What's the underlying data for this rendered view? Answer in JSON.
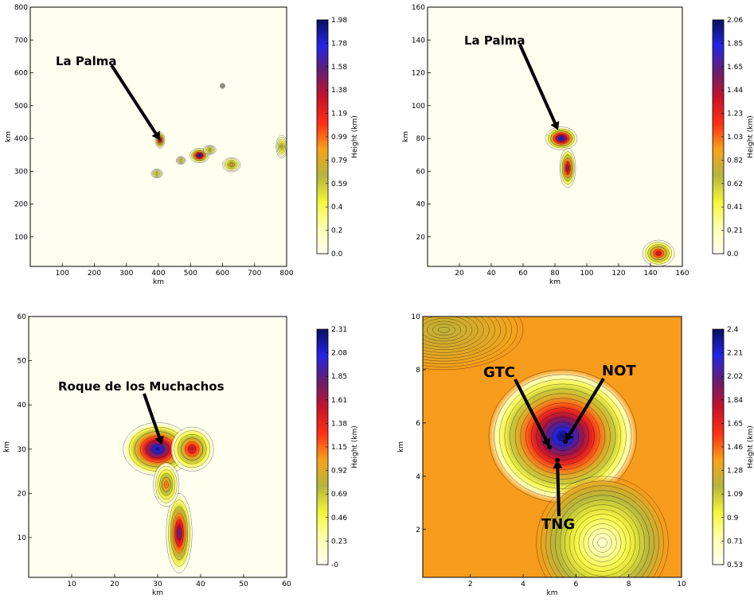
{
  "colors": {
    "cmap": [
      "#fffff0",
      "#ffffb0",
      "#f5f53a",
      "#b5b53d",
      "#f7a21c",
      "#ff3014",
      "#c9122a",
      "#681e6e",
      "#2424e6",
      "#0a0f5f"
    ],
    "background": "#fffff0"
  },
  "chart_data": [
    {
      "type": "contour",
      "xlabel": "km",
      "ylabel": "km",
      "xlim": [
        0,
        800
      ],
      "ylim": [
        10,
        800
      ],
      "xticks": [
        "100",
        "200",
        "300",
        "400",
        "500",
        "600",
        "700",
        "800"
      ],
      "yticks": [
        "100",
        "200",
        "300",
        "400",
        "500",
        "600",
        "700",
        "800"
      ],
      "colorbar": {
        "label": "Height (km)",
        "ticks": [
          "0.0",
          "0.2",
          "0.4",
          "0.59",
          "0.79",
          "0.99",
          "1.19",
          "1.38",
          "1.58",
          "1.78",
          "1.98"
        ]
      },
      "annotations": [
        {
          "text": "La Palma",
          "target": [
            405,
            395
          ]
        }
      ],
      "features": [
        {
          "x": 405,
          "y": 395,
          "rx": 15,
          "ry": 25,
          "peak": 1.6
        },
        {
          "x": 395,
          "y": 293,
          "rx": 18,
          "ry": 14,
          "peak": 0.6
        },
        {
          "x": 470,
          "y": 333,
          "rx": 15,
          "ry": 12,
          "peak": 0.5
        },
        {
          "x": 528,
          "y": 348,
          "rx": 30,
          "ry": 22,
          "peak": 1.9
        },
        {
          "x": 560,
          "y": 365,
          "rx": 20,
          "ry": 14,
          "peak": 0.7
        },
        {
          "x": 628,
          "y": 320,
          "rx": 28,
          "ry": 22,
          "peak": 0.9
        },
        {
          "x": 785,
          "y": 375,
          "rx": 18,
          "ry": 35,
          "peak": 0.7
        },
        {
          "x": 600,
          "y": 560,
          "rx": 8,
          "ry": 8,
          "peak": 0.1
        }
      ]
    },
    {
      "type": "contour",
      "xlabel": "km",
      "ylabel": "km",
      "xlim": [
        0,
        160
      ],
      "ylim": [
        2,
        160
      ],
      "xticks": [
        "20",
        "40",
        "60",
        "80",
        "100",
        "120",
        "140",
        "160"
      ],
      "yticks": [
        "20",
        "40",
        "60",
        "80",
        "100",
        "120",
        "140",
        "160"
      ],
      "colorbar": {
        "label": "Height (km)",
        "ticks": [
          "0.0",
          "0.21",
          "0.41",
          "0.62",
          "0.82",
          "1.03",
          "1.23",
          "1.44",
          "1.65",
          "1.85",
          "2.06"
        ]
      },
      "annotations": [
        {
          "text": "La Palma",
          "target": [
            82,
            85
          ]
        }
      ],
      "features": [
        {
          "x": 84,
          "y": 80,
          "rx": 10,
          "ry": 7,
          "peak": 2.0
        },
        {
          "x": 88,
          "y": 62,
          "rx": 5,
          "ry": 12,
          "peak": 1.6
        },
        {
          "x": 145,
          "y": 10,
          "rx": 10,
          "ry": 8,
          "peak": 1.4
        }
      ]
    },
    {
      "type": "contour",
      "xlabel": "km",
      "ylabel": "km",
      "xlim": [
        0,
        60
      ],
      "ylim": [
        1,
        60
      ],
      "xticks": [
        "10",
        "20",
        "30",
        "40",
        "50",
        "60"
      ],
      "yticks": [
        "10",
        "20",
        "30",
        "40",
        "50",
        "60"
      ],
      "colorbar": {
        "label": "Height (km)",
        "ticks": [
          "-0",
          "0.23",
          "0.46",
          "0.69",
          "0.92",
          "1.15",
          "1.38",
          "1.61",
          "1.85",
          "2.08",
          "2.31"
        ]
      },
      "annotations": [
        {
          "text": "Roque de los Muchachos",
          "target": [
            31,
            31
          ]
        }
      ],
      "features": [
        {
          "x": 30,
          "y": 30,
          "rx": 8,
          "ry": 6,
          "peak": 2.25
        },
        {
          "x": 38,
          "y": 30,
          "rx": 5,
          "ry": 5,
          "peak": 1.6
        },
        {
          "x": 35,
          "y": 11,
          "rx": 3,
          "ry": 9,
          "peak": 1.9
        },
        {
          "x": 32,
          "y": 22,
          "rx": 3,
          "ry": 5,
          "peak": 1.2
        }
      ]
    },
    {
      "type": "contour",
      "xlabel": "km",
      "ylabel": "km",
      "xlim": [
        0.2,
        10
      ],
      "ylim": [
        0.2,
        10
      ],
      "xticks": [
        "2",
        "4",
        "6",
        "8",
        "10"
      ],
      "yticks": [
        "2",
        "4",
        "6",
        "8",
        "10"
      ],
      "colorbar": {
        "label": "Height (km)",
        "ticks": [
          "0.53",
          "0.71",
          "0.9",
          "1.09",
          "1.28",
          "1.46",
          "1.65",
          "1.84",
          "2.02",
          "2.21",
          "2.4"
        ]
      },
      "annotations": [
        {
          "text": "GTC",
          "target": [
            5.0,
            5.1
          ]
        },
        {
          "text": "NOT",
          "target": [
            5.6,
            5.3
          ]
        },
        {
          "text": "TNG",
          "target": [
            5.3,
            4.6
          ]
        }
      ],
      "features": [
        {
          "x": 5.5,
          "y": 5.5,
          "rx": 2.8,
          "ry": 2.5,
          "peak": 2.4
        },
        {
          "x": 7.0,
          "y": 1.5,
          "rx": 2.5,
          "ry": 2.5,
          "peak": -1.6
        },
        {
          "x": 1.0,
          "y": 9.5,
          "rx": 3.0,
          "ry": 1.5,
          "peak": -0.4
        }
      ]
    }
  ]
}
